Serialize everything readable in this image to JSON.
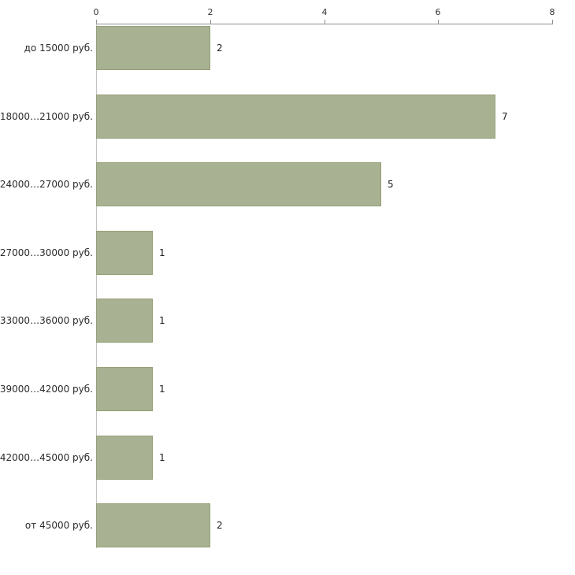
{
  "chart_data": {
    "type": "bar",
    "orientation": "horizontal",
    "title": "",
    "xlabel": "",
    "ylabel": "",
    "categories": [
      "до 15000 руб.",
      "18000…21000 руб.",
      "24000…27000 руб.",
      "27000…30000 руб.",
      "33000…36000 руб.",
      "39000…42000 руб.",
      "42000…45000 руб.",
      "от 45000 руб."
    ],
    "values": [
      2,
      7,
      5,
      1,
      1,
      1,
      1,
      2
    ],
    "xlim": [
      0,
      8
    ],
    "x_ticks": [
      0,
      2,
      4,
      6,
      8
    ],
    "grid": false,
    "legend": "none",
    "bar_color": "#a8b192",
    "bar_border_color": "#95a078",
    "axis_color": "#909090",
    "label_color": "#2b2b2b"
  }
}
